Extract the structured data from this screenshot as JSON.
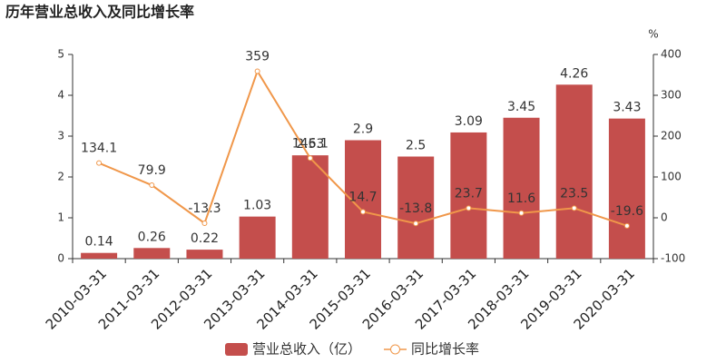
{
  "chart_data": {
    "type": "bar",
    "title": "历年营业总收入及同比增长率",
    "categories": [
      "2010-03-31",
      "2011-03-31",
      "2012-03-31",
      "2013-03-31",
      "2014-03-31",
      "2015-03-31",
      "2016-03-31",
      "2017-03-31",
      "2018-03-31",
      "2019-03-31",
      "2020-03-31"
    ],
    "series": [
      {
        "name": "营业总收入（亿）",
        "type": "bar",
        "color": "#c44e4c",
        "label_color": "#c44e4c",
        "values": [
          0.14,
          0.26,
          0.22,
          1.03,
          2.53,
          2.9,
          2.5,
          3.09,
          3.45,
          4.26,
          3.43
        ]
      },
      {
        "name": "同比增长率",
        "type": "line",
        "axis": "y2",
        "color": "#f0974a",
        "label_color": "#f0974a",
        "values": [
          134.1,
          79.9,
          -13.3,
          359,
          146.1,
          14.7,
          -13.8,
          23.7,
          11.6,
          23.5,
          -19.6
        ]
      }
    ],
    "ylim": [
      0,
      5
    ],
    "yticks": [
      0,
      1,
      2,
      3,
      4,
      5
    ],
    "y2lim": [
      -100,
      400
    ],
    "y2ticks": [
      -100,
      0,
      100,
      200,
      300,
      400
    ],
    "y2label": "%",
    "grid": false,
    "legend": "bottom"
  }
}
